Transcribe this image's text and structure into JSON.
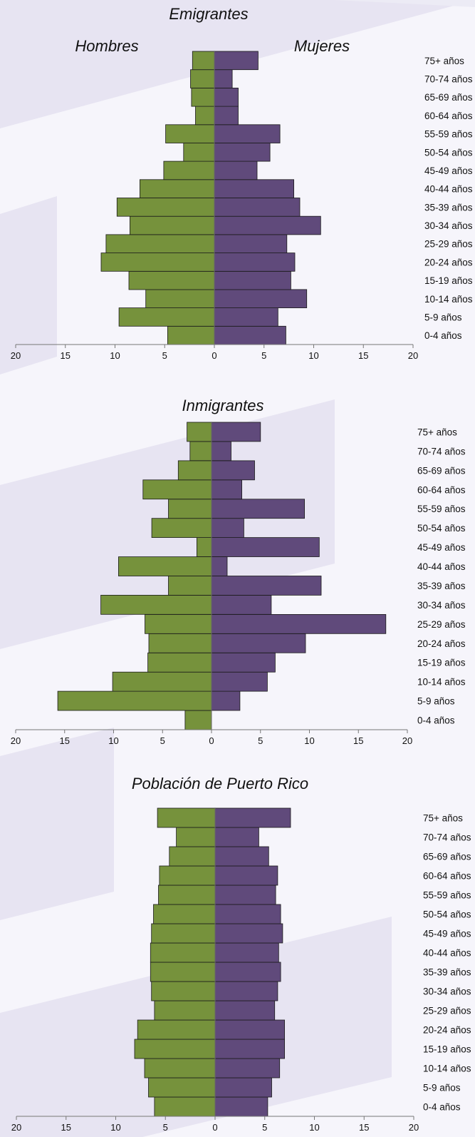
{
  "colors": {
    "men": "#76923c",
    "women": "#604a7b",
    "background": "#f6f5fb",
    "band": "#e7e4f2"
  },
  "chart_data": [
    {
      "type": "bar",
      "orientation": "horizontal-population-pyramid",
      "title": "Emigrantes",
      "legend": {
        "men": "Hombres",
        "women": "Mujeres"
      },
      "categories": [
        "0-4 años",
        "5-9 años",
        "10-14 años",
        "15-19 años",
        "20-24 años",
        "25-29 años",
        "30-34 años",
        "35-39 años",
        "40-44 años",
        "45-49 años",
        "50-54 años",
        "55-59 años",
        "60-64 años",
        "65-69 años",
        "70-74 años",
        "75+ años"
      ],
      "series": [
        {
          "name": "Hombres",
          "values": [
            4.7,
            9.6,
            6.9,
            8.6,
            11.4,
            10.9,
            8.5,
            9.8,
            7.5,
            5.1,
            3.1,
            4.9,
            1.9,
            2.3,
            2.4,
            2.2
          ]
        },
        {
          "name": "Mujeres",
          "values": [
            7.2,
            6.4,
            9.3,
            7.7,
            8.1,
            7.3,
            10.7,
            8.6,
            8.0,
            4.3,
            5.6,
            6.6,
            2.4,
            2.4,
            1.8,
            4.4
          ]
        }
      ],
      "xlim": [
        -20,
        20
      ],
      "x_ticks": [
        "20",
        "15",
        "10",
        "5",
        "0",
        "5",
        "10",
        "15",
        "20"
      ]
    },
    {
      "type": "bar",
      "orientation": "horizontal-population-pyramid",
      "title": "Inmigrantes",
      "categories": [
        "0-4 años",
        "5-9 años",
        "10-14 años",
        "15-19 años",
        "20-24 años",
        "25-29 años",
        "30-34 años",
        "35-39 años",
        "40-44 años",
        "45-49 años",
        "50-54 años",
        "55-59 años",
        "60-64 años",
        "65-69 años",
        "70-74 años",
        "75+ años"
      ],
      "series": [
        {
          "name": "Hombres",
          "values": [
            2.7,
            15.7,
            10.1,
            6.5,
            6.4,
            6.8,
            11.3,
            4.4,
            9.5,
            1.5,
            6.1,
            4.4,
            7.0,
            3.4,
            2.2,
            2.5
          ]
        },
        {
          "name": "Mujeres",
          "values": [
            0.0,
            2.9,
            5.7,
            6.5,
            9.6,
            17.8,
            6.1,
            11.2,
            1.6,
            11.0,
            3.3,
            9.5,
            3.1,
            4.4,
            2.0,
            5.0
          ]
        }
      ],
      "xlim": [
        -20,
        20
      ],
      "x_ticks": [
        "20",
        "15",
        "10",
        "5",
        "0",
        "5",
        "10",
        "15",
        "20"
      ]
    },
    {
      "type": "bar",
      "orientation": "horizontal-population-pyramid",
      "title": "Población de Puerto Rico",
      "categories": [
        "0-4 años",
        "5-9 años",
        "10-14 años",
        "15-19 años",
        "20-24 años",
        "25-29 años",
        "30-34 años",
        "35-39 años",
        "40-44 años",
        "45-49 años",
        "50-54 años",
        "55-59 años",
        "60-64 años",
        "65-69 años",
        "70-74 años",
        "75+ años"
      ],
      "series": [
        {
          "name": "Hombres",
          "values": [
            6.1,
            6.7,
            7.1,
            8.1,
            7.8,
            6.1,
            6.4,
            6.5,
            6.5,
            6.4,
            6.2,
            5.7,
            5.6,
            4.6,
            3.9,
            5.8
          ]
        },
        {
          "name": "Mujeres",
          "values": [
            5.3,
            5.7,
            6.5,
            7.0,
            7.0,
            6.0,
            6.3,
            6.6,
            6.4,
            6.8,
            6.6,
            6.1,
            6.3,
            5.4,
            4.4,
            7.6
          ]
        }
      ],
      "xlim": [
        -20,
        20
      ],
      "x_ticks": [
        "20",
        "15",
        "10",
        "5",
        "0",
        "5",
        "10",
        "15",
        "20"
      ]
    }
  ]
}
